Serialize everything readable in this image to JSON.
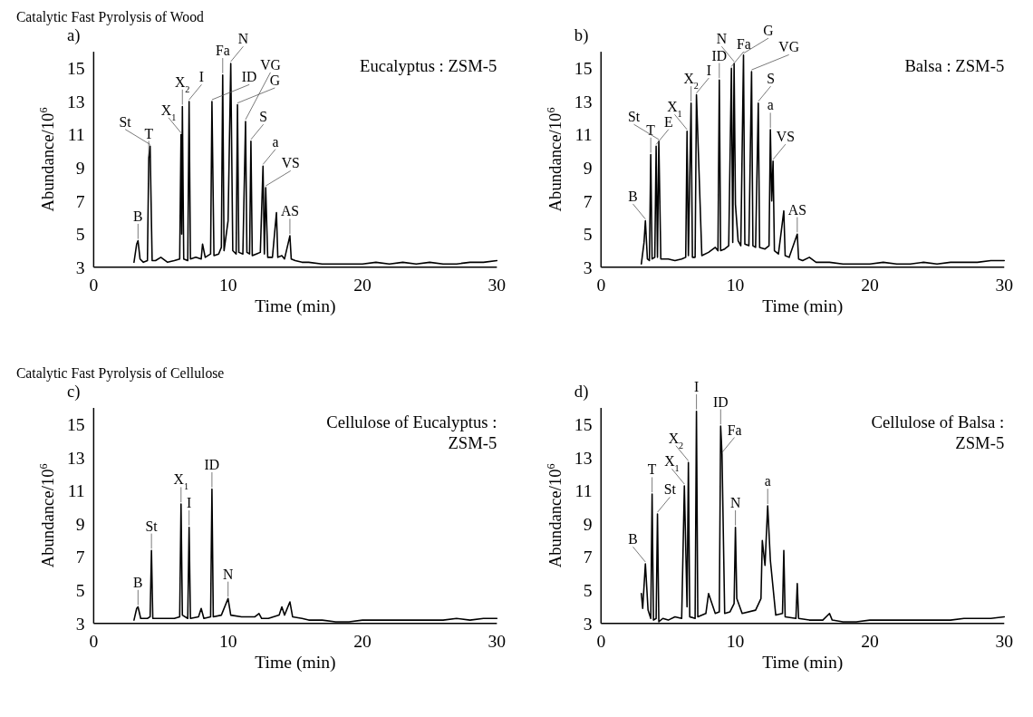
{
  "chart_data": [
    {
      "type": "line",
      "title": "Catalytic Fast Pyrolysis of Wood",
      "subtitle": "a)",
      "xlabel": "Time (min)",
      "ylabel": "Abundance/10$^{6}$",
      "xlim": [
        0,
        30
      ],
      "ylim": [
        3,
        16
      ],
      "xticks": [
        0,
        10,
        20,
        30
      ],
      "yticks": [
        3,
        5,
        7,
        9,
        11,
        13,
        15
      ],
      "x": [
        3.0,
        3.2,
        3.3,
        3.45,
        3.7,
        4.0,
        4.1,
        4.2,
        4.35,
        4.6,
        5.0,
        5.5,
        6.0,
        6.4,
        6.5,
        6.55,
        6.6,
        6.7,
        7.0,
        7.1,
        7.2,
        7.6,
        8.0,
        8.1,
        8.3,
        8.7,
        8.8,
        8.95,
        9.3,
        9.5,
        9.6,
        9.7,
        10.0,
        10.2,
        10.35,
        10.6,
        10.7,
        10.8,
        11.1,
        11.3,
        11.4,
        11.6,
        11.7,
        11.8,
        12.1,
        12.4,
        12.6,
        12.7,
        12.8,
        12.95,
        13.3,
        13.6,
        13.7,
        14.0,
        14.2,
        14.6,
        14.7,
        15.0,
        15.5,
        16,
        17,
        18,
        19,
        20,
        21,
        22,
        23,
        24,
        25,
        26,
        27,
        28,
        29,
        30
      ],
      "series": [
        {
          "color": "#000000",
          "values": [
            3.3,
            4.4,
            4.6,
            3.5,
            3.3,
            3.4,
            9.6,
            10.3,
            3.4,
            3.4,
            3.6,
            3.3,
            3.4,
            3.5,
            11.0,
            5.0,
            12.7,
            3.5,
            3.4,
            13.0,
            3.5,
            3.6,
            3.5,
            4.4,
            3.6,
            3.8,
            13.0,
            3.7,
            3.8,
            4.2,
            14.6,
            4.0,
            5.8,
            15.3,
            4.0,
            3.8,
            12.8,
            3.9,
            3.8,
            11.8,
            3.9,
            3.8,
            10.6,
            3.7,
            3.8,
            3.9,
            9.1,
            3.8,
            7.8,
            3.6,
            3.6,
            6.3,
            3.6,
            3.7,
            3.5,
            4.9,
            3.5,
            3.4,
            3.3,
            3.3,
            3.2,
            3.2,
            3.2,
            3.2,
            3.3,
            3.2,
            3.3,
            3.2,
            3.3,
            3.2,
            3.2,
            3.3,
            3.3,
            3.4
          ]
        }
      ],
      "annotations": [
        "Eucalyptus : ZSM-5",
        {
          "text": "B",
          "x": 3.3,
          "y": 4.6
        },
        {
          "text": "T",
          "x": 4.1,
          "y": 9.6
        },
        {
          "text": "St",
          "x": 4.2,
          "y": 10.3
        },
        {
          "text": "X$_{1}$",
          "x": 6.5,
          "y": 11.0
        },
        {
          "text": "X$_{2}$",
          "x": 6.6,
          "y": 12.7
        },
        {
          "text": "I",
          "x": 7.1,
          "y": 13.0
        },
        {
          "text": "ID",
          "x": 8.8,
          "y": 13.0
        },
        {
          "text": "Fa",
          "x": 9.6,
          "y": 14.6
        },
        {
          "text": "N",
          "x": 10.2,
          "y": 15.3
        },
        {
          "text": "G",
          "x": 10.7,
          "y": 12.8
        },
        {
          "text": "VG",
          "x": 11.3,
          "y": 11.8
        },
        {
          "text": "S",
          "x": 11.7,
          "y": 10.6
        },
        {
          "text": "a",
          "x": 12.6,
          "y": 9.1
        },
        {
          "text": "VS",
          "x": 12.8,
          "y": 7.8
        },
        {
          "text": "AS",
          "x": 14.6,
          "y": 4.9
        }
      ]
    },
    {
      "type": "line",
      "subtitle": "b)",
      "xlabel": "Time (min)",
      "ylabel": "Abundance/10$^{6}$",
      "xlim": [
        0,
        30
      ],
      "ylim": [
        3,
        16
      ],
      "xticks": [
        0,
        10,
        20,
        30
      ],
      "yticks": [
        3,
        5,
        7,
        9,
        11,
        13,
        15
      ],
      "x": [
        3.0,
        3.2,
        3.3,
        3.45,
        3.6,
        3.7,
        3.8,
        4.0,
        4.1,
        4.2,
        4.3,
        4.45,
        5.0,
        5.5,
        6.0,
        6.3,
        6.4,
        6.5,
        6.7,
        6.8,
        7.0,
        7.1,
        7.5,
        8.0,
        8.5,
        8.7,
        8.8,
        8.9,
        9.2,
        9.5,
        9.7,
        9.8,
        9.9,
        10.0,
        10.2,
        10.4,
        10.6,
        10.7,
        11.0,
        11.2,
        11.3,
        11.5,
        11.7,
        11.8,
        12.2,
        12.5,
        12.6,
        12.7,
        12.8,
        12.9,
        13.2,
        13.6,
        13.7,
        14.0,
        14.6,
        14.7,
        15.0,
        15.5,
        16,
        17,
        18,
        19,
        20,
        21,
        22,
        23,
        24,
        25,
        26,
        27,
        28,
        29,
        30
      ],
      "series": [
        {
          "color": "#000000",
          "values": [
            3.2,
            4.5,
            5.8,
            3.5,
            3.4,
            9.8,
            3.5,
            3.6,
            10.3,
            3.6,
            10.6,
            3.5,
            3.5,
            3.4,
            3.5,
            3.6,
            11.2,
            3.7,
            12.9,
            3.6,
            3.6,
            13.4,
            3.7,
            3.9,
            4.2,
            4.0,
            14.3,
            4.0,
            4.1,
            4.3,
            15.0,
            4.5,
            15.3,
            6.8,
            4.6,
            4.3,
            15.8,
            4.4,
            4.3,
            14.8,
            4.3,
            4.2,
            12.9,
            4.2,
            4.1,
            4.3,
            11.3,
            7.0,
            9.4,
            4.0,
            3.8,
            6.4,
            3.7,
            3.6,
            5.0,
            3.5,
            3.4,
            3.6,
            3.3,
            3.3,
            3.2,
            3.2,
            3.2,
            3.3,
            3.2,
            3.2,
            3.3,
            3.2,
            3.3,
            3.3,
            3.3,
            3.4,
            3.4
          ]
        }
      ],
      "annotations": [
        "Balsa : ZSM-5",
        {
          "text": "B",
          "x": 3.3,
          "y": 5.8
        },
        {
          "text": "T",
          "x": 3.7,
          "y": 9.8
        },
        {
          "text": "E",
          "x": 4.1,
          "y": 10.3
        },
        {
          "text": "St",
          "x": 4.3,
          "y": 10.6
        },
        {
          "text": "X$_{1}$",
          "x": 6.4,
          "y": 11.2
        },
        {
          "text": "X$_{2}$",
          "x": 6.7,
          "y": 12.9
        },
        {
          "text": "I",
          "x": 7.1,
          "y": 13.4
        },
        {
          "text": "ID",
          "x": 8.8,
          "y": 14.3
        },
        {
          "text": "Fa",
          "x": 9.7,
          "y": 15.0
        },
        {
          "text": "N",
          "x": 9.9,
          "y": 15.3
        },
        {
          "text": "G",
          "x": 10.6,
          "y": 15.8
        },
        {
          "text": "VG",
          "x": 11.2,
          "y": 14.8
        },
        {
          "text": "S",
          "x": 11.7,
          "y": 12.9
        },
        {
          "text": "a",
          "x": 12.6,
          "y": 11.3
        },
        {
          "text": "VS",
          "x": 12.8,
          "y": 9.4
        },
        {
          "text": "AS",
          "x": 14.6,
          "y": 5.0
        }
      ]
    },
    {
      "type": "line",
      "title": "Catalytic Fast Pyrolysis of Cellulose",
      "subtitle": "c)",
      "xlabel": "Time (min)",
      "ylabel": "Abundance/10$^{6}$",
      "xlim": [
        0,
        30
      ],
      "ylim": [
        3,
        16
      ],
      "xticks": [
        0,
        10,
        20,
        30
      ],
      "yticks": [
        3,
        5,
        7,
        9,
        11,
        13,
        15
      ],
      "x": [
        3.0,
        3.2,
        3.3,
        3.5,
        4.0,
        4.2,
        4.3,
        4.4,
        5.0,
        6.0,
        6.4,
        6.5,
        6.6,
        7.0,
        7.1,
        7.2,
        7.8,
        8.0,
        8.2,
        8.7,
        8.8,
        8.9,
        9.5,
        10.0,
        10.2,
        11,
        12,
        12.3,
        12.5,
        13,
        13.8,
        14.0,
        14.2,
        14.6,
        14.8,
        15.5,
        16,
        17,
        18,
        19,
        20,
        21,
        22,
        23,
        24,
        25,
        26,
        27,
        28,
        29,
        30
      ],
      "series": [
        {
          "color": "#000000",
          "values": [
            3.2,
            3.9,
            4.0,
            3.3,
            3.3,
            3.4,
            7.4,
            3.3,
            3.3,
            3.3,
            3.4,
            10.2,
            3.5,
            3.3,
            8.8,
            3.3,
            3.4,
            3.9,
            3.3,
            3.4,
            11.1,
            3.4,
            3.5,
            4.5,
            3.5,
            3.4,
            3.4,
            3.6,
            3.3,
            3.3,
            3.5,
            4.0,
            3.5,
            4.3,
            3.4,
            3.3,
            3.2,
            3.2,
            3.1,
            3.1,
            3.2,
            3.2,
            3.2,
            3.2,
            3.2,
            3.2,
            3.2,
            3.3,
            3.2,
            3.3,
            3.3
          ]
        }
      ],
      "annotations": [
        "Cellulose of Eucalyptus : ZSM-5",
        {
          "text": "B",
          "x": 3.3,
          "y": 4.0
        },
        {
          "text": "St",
          "x": 4.3,
          "y": 7.4
        },
        {
          "text": "X$_{1}$",
          "x": 6.5,
          "y": 10.2
        },
        {
          "text": "I",
          "x": 7.1,
          "y": 8.8
        },
        {
          "text": "ID",
          "x": 8.8,
          "y": 11.1
        },
        {
          "text": "N",
          "x": 10.0,
          "y": 4.5
        }
      ]
    },
    {
      "type": "line",
      "subtitle": "d)",
      "xlabel": "Time (min)",
      "ylabel": "Abundance/10$^{6}$",
      "xlim": [
        0,
        30
      ],
      "ylim": [
        3,
        16
      ],
      "xticks": [
        0,
        10,
        20,
        30
      ],
      "yticks": [
        3,
        5,
        7,
        9,
        11,
        13,
        15
      ],
      "x": [
        3.0,
        3.1,
        3.3,
        3.5,
        3.7,
        3.8,
        3.9,
        4.1,
        4.2,
        4.3,
        4.6,
        5.0,
        5.5,
        6.0,
        6.2,
        6.4,
        6.5,
        6.6,
        7.0,
        7.1,
        7.2,
        7.8,
        8.0,
        8.5,
        8.8,
        8.9,
        9.0,
        9.2,
        9.6,
        9.9,
        10.0,
        10.1,
        10.5,
        11.5,
        11.9,
        12.0,
        12.2,
        12.4,
        12.6,
        13.0,
        13.5,
        13.6,
        13.7,
        14.5,
        14.6,
        14.7,
        15.5,
        16.5,
        17.0,
        17.2,
        18,
        19,
        20,
        21,
        22,
        23,
        24,
        25,
        26,
        27,
        28,
        29,
        30
      ],
      "series": [
        {
          "color": "#000000",
          "values": [
            4.8,
            3.9,
            6.6,
            3.8,
            3.3,
            10.8,
            3.2,
            3.3,
            9.6,
            3.1,
            3.3,
            3.2,
            3.4,
            3.3,
            11.3,
            4.0,
            12.7,
            3.4,
            3.3,
            15.8,
            3.4,
            3.6,
            4.8,
            3.6,
            3.7,
            14.9,
            13.2,
            3.6,
            3.7,
            4.2,
            8.8,
            4.5,
            3.6,
            3.8,
            4.5,
            8.0,
            6.5,
            10.1,
            6.8,
            3.5,
            3.6,
            7.4,
            3.4,
            3.3,
            5.4,
            3.3,
            3.2,
            3.2,
            3.6,
            3.2,
            3.1,
            3.1,
            3.2,
            3.2,
            3.2,
            3.2,
            3.2,
            3.2,
            3.2,
            3.3,
            3.3,
            3.3,
            3.4
          ]
        }
      ],
      "annotations": [
        "Cellulose of Balsa : ZSM-5",
        {
          "text": "B",
          "x": 3.3,
          "y": 6.6
        },
        {
          "text": "T",
          "x": 3.8,
          "y": 10.8
        },
        {
          "text": "St",
          "x": 4.2,
          "y": 9.6
        },
        {
          "text": "X$_{1}$",
          "x": 6.2,
          "y": 11.3
        },
        {
          "text": "X$_{2}$",
          "x": 6.5,
          "y": 12.7
        },
        {
          "text": "I",
          "x": 7.1,
          "y": 15.8
        },
        {
          "text": "ID",
          "x": 8.9,
          "y": 14.9
        },
        {
          "text": "Fa",
          "x": 9.0,
          "y": 13.2
        },
        {
          "text": "N",
          "x": 10.0,
          "y": 8.8
        },
        {
          "text": "a",
          "x": 12.4,
          "y": 10.1
        }
      ]
    }
  ]
}
